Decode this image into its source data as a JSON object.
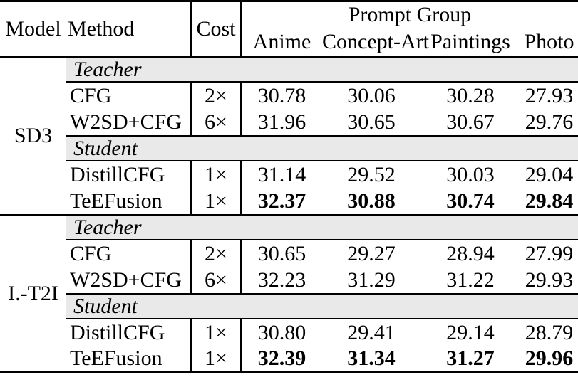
{
  "table": {
    "colors": {
      "band_background": "#e9e9e9",
      "rule": "#000000",
      "text": "#000000"
    },
    "header": {
      "model": "Model",
      "method": "Method",
      "cost": "Cost",
      "prompt_group": "Prompt Group",
      "columns": [
        "Anime",
        "Concept-Art",
        "Paintings",
        "Photo"
      ]
    },
    "blocks": [
      {
        "model": "SD3",
        "sections": [
          {
            "label": "Teacher",
            "rows": [
              {
                "method": "CFG",
                "cost": "2×",
                "values": [
                  "30.78",
                  "30.06",
                  "30.28",
                  "27.93"
                ],
                "bold": false
              },
              {
                "method": "W2SD+CFG",
                "cost": "6×",
                "values": [
                  "31.96",
                  "30.65",
                  "30.67",
                  "29.76"
                ],
                "bold": false
              }
            ]
          },
          {
            "label": "Student",
            "rows": [
              {
                "method": "DistillCFG",
                "cost": "1×",
                "values": [
                  "31.14",
                  "29.52",
                  "30.03",
                  "29.04"
                ],
                "bold": false
              },
              {
                "method": "TeEFusion",
                "cost": "1×",
                "values": [
                  "32.37",
                  "30.88",
                  "30.74",
                  "29.84"
                ],
                "bold": true
              }
            ]
          }
        ]
      },
      {
        "model": "I.-T2I",
        "sections": [
          {
            "label": "Teacher",
            "rows": [
              {
                "method": "CFG",
                "cost": "2×",
                "values": [
                  "30.65",
                  "29.27",
                  "28.94",
                  "27.99"
                ],
                "bold": false
              },
              {
                "method": "W2SD+CFG",
                "cost": "6×",
                "values": [
                  "32.23",
                  "31.29",
                  "31.22",
                  "29.93"
                ],
                "bold": false
              }
            ]
          },
          {
            "label": "Student",
            "rows": [
              {
                "method": "DistillCFG",
                "cost": "1×",
                "values": [
                  "30.80",
                  "29.41",
                  "29.14",
                  "28.79"
                ],
                "bold": false
              },
              {
                "method": "TeEFusion",
                "cost": "1×",
                "values": [
                  "32.39",
                  "31.34",
                  "31.27",
                  "29.96"
                ],
                "bold": true
              }
            ]
          }
        ]
      }
    ]
  }
}
